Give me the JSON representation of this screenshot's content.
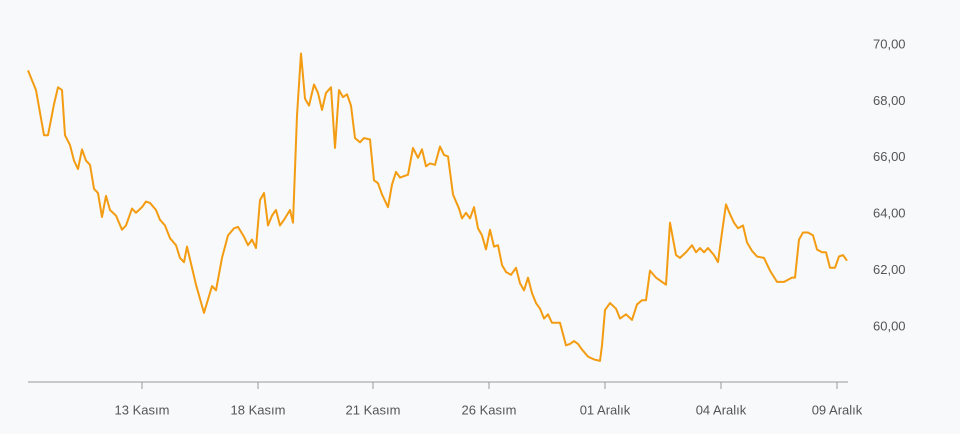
{
  "chart_data": {
    "type": "line",
    "x": [
      0,
      8,
      16,
      20,
      26,
      30,
      34,
      37,
      42,
      46,
      50,
      54,
      58,
      62,
      66,
      70,
      74,
      78,
      82,
      88,
      94,
      98,
      104,
      108,
      114,
      118,
      122,
      128,
      132,
      137,
      142,
      148,
      152,
      156,
      159,
      164,
      168,
      176,
      184,
      188,
      194,
      200,
      206,
      210,
      216,
      220,
      224,
      228,
      232,
      236,
      240,
      244,
      248,
      252,
      256,
      262,
      265,
      269,
      273,
      277,
      281,
      286,
      290,
      294,
      298,
      303,
      307,
      311,
      315,
      319,
      323,
      327,
      332,
      336,
      342,
      346,
      350,
      354,
      360,
      364,
      368,
      372,
      380,
      385,
      390,
      394,
      398,
      402,
      407,
      412,
      416,
      420,
      425,
      431,
      434,
      438,
      442,
      446,
      450,
      454,
      458,
      462,
      466,
      470,
      474,
      478,
      483,
      488,
      492,
      496,
      500,
      504,
      508,
      512,
      516,
      520,
      524,
      532,
      538,
      542,
      546,
      550,
      554,
      560,
      566,
      572,
      574,
      577,
      582,
      588,
      592,
      598,
      604,
      609,
      614,
      618,
      622,
      628,
      632,
      638,
      642,
      648,
      652,
      658,
      664,
      668,
      672,
      676,
      680,
      686,
      690,
      694,
      698,
      702,
      706,
      710,
      715,
      719,
      724,
      729,
      736,
      742,
      749,
      756,
      764,
      767,
      771,
      775,
      780,
      785,
      789,
      794,
      798,
      802,
      807,
      811,
      815,
      819
    ],
    "values": [
      69.1,
      68.4,
      66.8,
      66.8,
      67.9,
      68.5,
      68.4,
      66.8,
      66.45,
      65.9,
      65.6,
      66.3,
      65.9,
      65.75,
      64.9,
      64.75,
      63.9,
      64.65,
      64.15,
      63.95,
      63.45,
      63.6,
      64.2,
      64.05,
      64.25,
      64.45,
      64.4,
      64.15,
      63.8,
      63.6,
      63.15,
      62.9,
      62.45,
      62.3,
      62.85,
      62.1,
      61.5,
      60.5,
      61.45,
      61.3,
      62.45,
      63.25,
      63.5,
      63.55,
      63.2,
      62.9,
      63.1,
      62.8,
      64.5,
      64.75,
      63.6,
      63.95,
      64.15,
      63.6,
      63.8,
      64.15,
      63.7,
      67.5,
      69.7,
      68.1,
      67.85,
      68.6,
      68.3,
      67.7,
      68.3,
      68.5,
      66.35,
      68.4,
      68.15,
      68.25,
      67.85,
      66.7,
      66.55,
      66.7,
      66.65,
      65.2,
      65.1,
      64.7,
      64.25,
      65.05,
      65.5,
      65.3,
      65.4,
      66.35,
      66.0,
      66.3,
      65.7,
      65.8,
      65.75,
      66.4,
      66.1,
      66.05,
      64.7,
      64.2,
      63.85,
      64.05,
      63.85,
      64.25,
      63.5,
      63.25,
      62.75,
      63.45,
      62.85,
      62.9,
      62.2,
      61.95,
      61.85,
      62.1,
      61.55,
      61.3,
      61.75,
      61.2,
      60.85,
      60.65,
      60.3,
      60.45,
      60.15,
      60.15,
      59.35,
      59.4,
      59.5,
      59.4,
      59.2,
      58.95,
      58.85,
      58.8,
      59.35,
      60.6,
      60.85,
      60.65,
      60.3,
      60.45,
      60.25,
      60.8,
      60.95,
      60.95,
      62.0,
      61.75,
      61.65,
      61.5,
      63.7,
      62.55,
      62.45,
      62.65,
      62.9,
      62.65,
      62.8,
      62.65,
      62.8,
      62.55,
      62.3,
      63.35,
      64.35,
      64.0,
      63.7,
      63.5,
      63.6,
      63.0,
      62.7,
      62.5,
      62.45,
      62.0,
      61.6,
      61.6,
      61.75,
      61.75,
      63.1,
      63.35,
      63.35,
      63.25,
      62.75,
      62.65,
      62.65,
      62.1,
      62.1,
      62.5,
      62.55,
      62.35
    ],
    "color": "#f39c12",
    "xlim": [
      0,
      820
    ],
    "xticks": [
      {
        "value": 114,
        "label": "13 Kasım"
      },
      {
        "value": 230,
        "label": "18 Kasım"
      },
      {
        "value": 345,
        "label": "21 Kasım"
      },
      {
        "value": 461,
        "label": "26 Kasım"
      },
      {
        "value": 577,
        "label": "01 Aralık"
      },
      {
        "value": 693,
        "label": "04 Aralık"
      },
      {
        "value": 809,
        "label": "09 Aralık"
      }
    ],
    "ylim": [
      58,
      71
    ],
    "yticks": [
      {
        "value": 60,
        "label": "60,00"
      },
      {
        "value": 62,
        "label": "62,00"
      },
      {
        "value": 64,
        "label": "64,00"
      },
      {
        "value": 66,
        "label": "66,00"
      },
      {
        "value": 68,
        "label": "68,00"
      },
      {
        "value": 70,
        "label": "70,00"
      }
    ],
    "grid": false
  }
}
